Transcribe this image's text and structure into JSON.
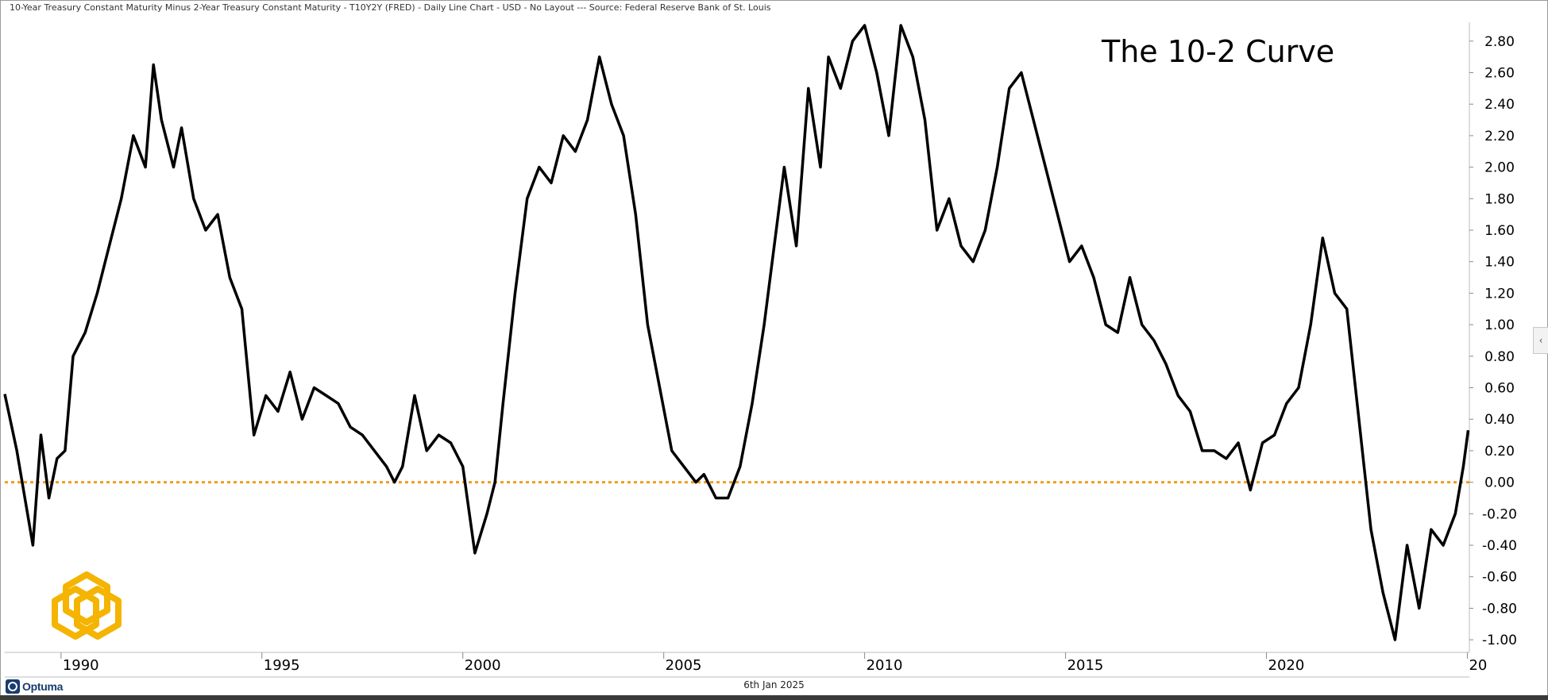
{
  "header": {
    "title": "10-Year Treasury Constant Maturity Minus 2-Year Treasury Constant Maturity - T10Y2Y (FRED) - Daily Line Chart - USD - No Layout --- Source: Federal Reserve Bank of St. Louis"
  },
  "footer": {
    "date": "6th Jan 2025",
    "brand": "Optuma"
  },
  "side_tab": {
    "icon": "chevron-left-icon",
    "glyph": "‹"
  },
  "colors": {
    "series": "#000000",
    "zero_line": "#f29c1f",
    "logo": "#f4b400",
    "brand": "#1a3c6e"
  },
  "chart_data": {
    "type": "line",
    "title": "The 10-2 Curve",
    "xlabel": "",
    "ylabel": "",
    "xlim": [
      1988.6,
      2025.05
    ],
    "ylim": [
      -1.08,
      2.92
    ],
    "x_ticks": [
      "1990",
      "1995",
      "2000",
      "2005",
      "2010",
      "2015",
      "2020",
      "20"
    ],
    "x_tick_values": [
      1990,
      1995,
      2000,
      2005,
      2010,
      2015,
      2020,
      2025
    ],
    "y_ticks": [
      "2.80",
      "2.60",
      "2.40",
      "2.20",
      "2.00",
      "1.80",
      "1.60",
      "1.40",
      "1.20",
      "1.00",
      "0.80",
      "0.60",
      "0.40",
      "0.20",
      "0.00",
      "-0.20",
      "-0.40",
      "-0.60",
      "-0.80",
      "-1.00"
    ],
    "y_tick_values": [
      2.8,
      2.6,
      2.4,
      2.2,
      2.0,
      1.8,
      1.6,
      1.4,
      1.2,
      1.0,
      0.8,
      0.6,
      0.4,
      0.2,
      0.0,
      -0.2,
      -0.4,
      -0.6,
      -0.8,
      -1.0
    ],
    "y_axis_side": "right",
    "grid": false,
    "reference_line": {
      "y": 0.0,
      "style": "dotted"
    },
    "series": [
      {
        "x": [
          1988.6,
          1988.9,
          1989.3,
          1989.5,
          1989.7,
          1989.9,
          1990.1,
          1990.3,
          1990.6,
          1990.9,
          1991.2,
          1991.5,
          1991.8,
          1992.1,
          1992.3,
          1992.5,
          1992.8,
          1993.0,
          1993.3,
          1993.6,
          1993.9,
          1994.2,
          1994.5,
          1994.8,
          1995.1,
          1995.4,
          1995.7,
          1996.0,
          1996.3,
          1996.6,
          1996.9,
          1997.2,
          1997.5,
          1997.8,
          1998.1,
          1998.3,
          1998.5,
          1998.8,
          1999.1,
          1999.4,
          1999.7,
          2000.0,
          2000.3,
          2000.6,
          2000.8,
          2001.0,
          2001.3,
          2001.6,
          2001.9,
          2002.2,
          2002.5,
          2002.8,
          2003.1,
          2003.4,
          2003.7,
          2004.0,
          2004.3,
          2004.6,
          2004.9,
          2005.2,
          2005.5,
          2005.8,
          2006.0,
          2006.3,
          2006.6,
          2006.9,
          2007.2,
          2007.5,
          2007.8,
          2008.0,
          2008.3,
          2008.6,
          2008.9,
          2009.1,
          2009.4,
          2009.7,
          2010.0,
          2010.3,
          2010.6,
          2010.9,
          2011.2,
          2011.5,
          2011.8,
          2012.1,
          2012.4,
          2012.7,
          2013.0,
          2013.3,
          2013.6,
          2013.9,
          2014.2,
          2014.5,
          2014.8,
          2015.1,
          2015.4,
          2015.7,
          2016.0,
          2016.3,
          2016.6,
          2016.9,
          2017.2,
          2017.5,
          2017.8,
          2018.1,
          2018.4,
          2018.7,
          2019.0,
          2019.3,
          2019.6,
          2019.9,
          2020.2,
          2020.5,
          2020.8,
          2021.1,
          2021.4,
          2021.7,
          2022.0,
          2022.3,
          2022.6,
          2022.9,
          2023.2,
          2023.5,
          2023.8,
          2024.1,
          2024.4,
          2024.7,
          2024.9,
          2025.02
        ],
        "y": [
          0.56,
          0.2,
          -0.4,
          0.3,
          -0.1,
          0.15,
          0.2,
          0.8,
          0.95,
          1.2,
          1.5,
          1.8,
          2.2,
          2.0,
          2.65,
          2.3,
          2.0,
          2.25,
          1.8,
          1.6,
          1.7,
          1.3,
          1.1,
          0.3,
          0.55,
          0.45,
          0.7,
          0.4,
          0.6,
          0.55,
          0.5,
          0.35,
          0.3,
          0.2,
          0.1,
          0.0,
          0.1,
          0.55,
          0.2,
          0.3,
          0.25,
          0.1,
          -0.45,
          -0.2,
          0.0,
          0.5,
          1.2,
          1.8,
          2.0,
          1.9,
          2.2,
          2.1,
          2.3,
          2.7,
          2.4,
          2.2,
          1.7,
          1.0,
          0.6,
          0.2,
          0.1,
          0.0,
          0.05,
          -0.1,
          -0.1,
          0.1,
          0.5,
          1.0,
          1.6,
          2.0,
          1.5,
          2.5,
          2.0,
          2.7,
          2.5,
          2.8,
          2.9,
          2.6,
          2.2,
          2.9,
          2.7,
          2.3,
          1.6,
          1.8,
          1.5,
          1.4,
          1.6,
          2.0,
          2.5,
          2.6,
          2.3,
          2.0,
          1.7,
          1.4,
          1.5,
          1.3,
          1.0,
          0.95,
          1.3,
          1.0,
          0.9,
          0.75,
          0.55,
          0.45,
          0.2,
          0.2,
          0.15,
          0.25,
          -0.05,
          0.25,
          0.3,
          0.5,
          0.6,
          1.0,
          1.55,
          1.2,
          1.1,
          0.4,
          -0.3,
          -0.7,
          -1.0,
          -0.4,
          -0.8,
          -0.3,
          -0.4,
          -0.2,
          0.1,
          0.33
        ]
      }
    ],
    "annotations": []
  }
}
